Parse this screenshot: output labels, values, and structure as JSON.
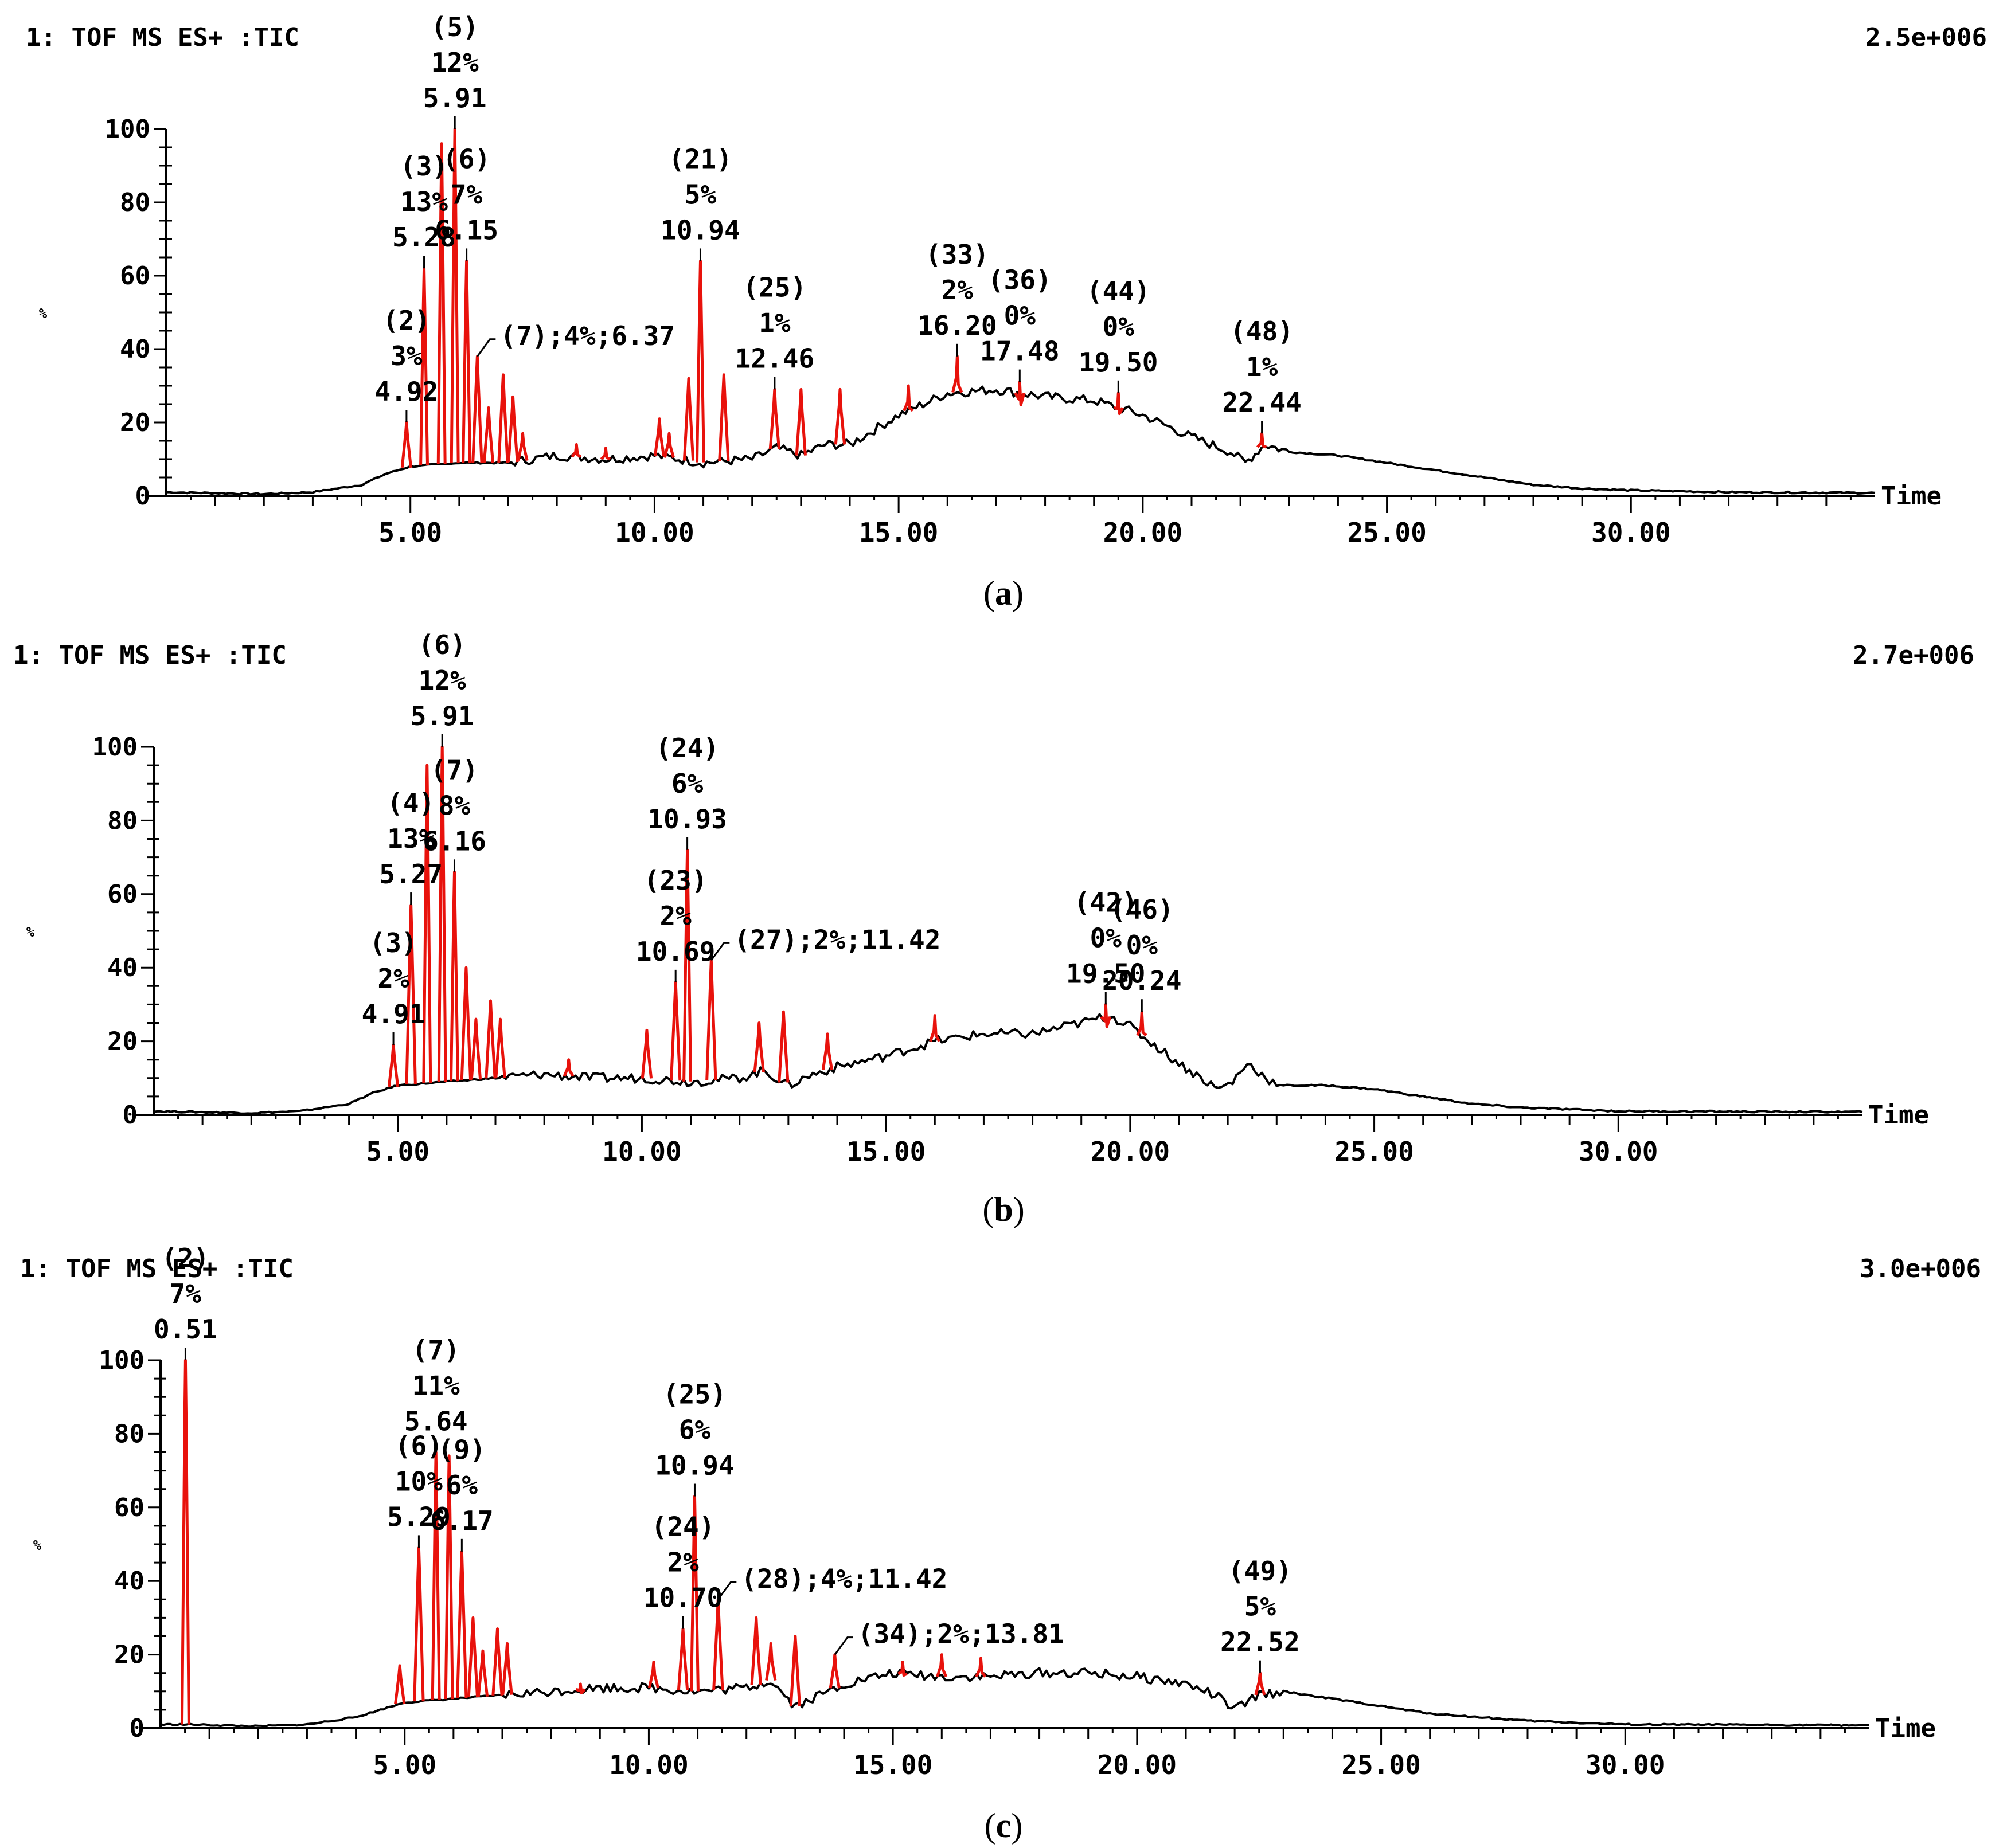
{
  "colors": {
    "peak": "#e8120c",
    "trace": "#000000",
    "background": "#ffffff"
  },
  "chart_data": [
    {
      "type": "line",
      "panel_label": "a",
      "header_left": "1: TOF MS ES+ :TIC",
      "header_right": "2.5e+006",
      "ylabel": "%",
      "xlabel": "Time",
      "xlim": [
        0,
        35
      ],
      "ylim": [
        0,
        100
      ],
      "x_ticks": [
        5,
        10,
        15,
        20,
        25,
        30
      ],
      "x_tick_labels": [
        "5.00",
        "10.00",
        "15.00",
        "20.00",
        "25.00",
        "30.00"
      ],
      "y_ticks": [
        0,
        20,
        40,
        60,
        80,
        100
      ],
      "y_tick_labels": [
        "0",
        "20",
        "40",
        "60",
        "80",
        "100"
      ],
      "baseline": [
        [
          0,
          1
        ],
        [
          2,
          0.5
        ],
        [
          3,
          1
        ],
        [
          4,
          3
        ],
        [
          4.5,
          6
        ],
        [
          5,
          8
        ],
        [
          6,
          9
        ],
        [
          7,
          9
        ],
        [
          8,
          11
        ],
        [
          9,
          10
        ],
        [
          10,
          11
        ],
        [
          11,
          9
        ],
        [
          12,
          10
        ],
        [
          12.5,
          13
        ],
        [
          13,
          11
        ],
        [
          13.5,
          14
        ],
        [
          14,
          14
        ],
        [
          15,
          22
        ],
        [
          16,
          28
        ],
        [
          17,
          29
        ],
        [
          18,
          27
        ],
        [
          19,
          26
        ],
        [
          20,
          22
        ],
        [
          21,
          16
        ],
        [
          21.8,
          12
        ],
        [
          22.1,
          9
        ],
        [
          22.5,
          14
        ],
        [
          23,
          12
        ],
        [
          24,
          11
        ],
        [
          25,
          9
        ],
        [
          26,
          7
        ],
        [
          27,
          5
        ],
        [
          28,
          3
        ],
        [
          29,
          2
        ],
        [
          30,
          1.5
        ],
        [
          32,
          1
        ],
        [
          35,
          0.8
        ]
      ],
      "peaks": [
        [
          4.92,
          20
        ],
        [
          5.28,
          62
        ],
        [
          5.64,
          96
        ],
        [
          5.91,
          100
        ],
        [
          6.15,
          64
        ],
        [
          6.37,
          38
        ],
        [
          6.6,
          24
        ],
        [
          6.9,
          33
        ],
        [
          7.1,
          27
        ],
        [
          7.3,
          17
        ],
        [
          8.4,
          14
        ],
        [
          9.0,
          13
        ],
        [
          10.1,
          21
        ],
        [
          10.3,
          17
        ],
        [
          10.7,
          32
        ],
        [
          10.94,
          64
        ],
        [
          11.42,
          33
        ],
        [
          12.46,
          29
        ],
        [
          13.0,
          29
        ],
        [
          13.8,
          29
        ],
        [
          15.2,
          30
        ],
        [
          16.2,
          38
        ],
        [
          17.48,
          31
        ],
        [
          19.5,
          28
        ],
        [
          22.44,
          17
        ]
      ],
      "annotations": [
        {
          "id": "(2)",
          "pct": "3%",
          "rt": "4.92",
          "x": 4.92
        },
        {
          "id": "(3)",
          "pct": "13%",
          "rt": "5.28",
          "x": 5.28
        },
        {
          "id": "(5)",
          "pct": "12%",
          "rt": "5.91",
          "x": 5.91
        },
        {
          "id": "(6)",
          "pct": "7%",
          "rt": "6.15",
          "x": 6.15
        },
        {
          "id": "(7)",
          "pct": "4%",
          "rt": "6.37",
          "x": 6.37,
          "inline": "(7);4%;6.37"
        },
        {
          "id": "(21)",
          "pct": "5%",
          "rt": "10.94",
          "x": 10.94
        },
        {
          "id": "(25)",
          "pct": "1%",
          "rt": "12.46",
          "x": 12.46
        },
        {
          "id": "(33)",
          "pct": "2%",
          "rt": "16.20",
          "x": 16.2
        },
        {
          "id": "(36)",
          "pct": "0%",
          "rt": "17.48",
          "x": 17.48
        },
        {
          "id": "(44)",
          "pct": "0%",
          "rt": "19.50",
          "x": 19.5
        },
        {
          "id": "(48)",
          "pct": "1%",
          "rt": "22.44",
          "x": 22.44
        }
      ]
    },
    {
      "type": "line",
      "panel_label": "b",
      "header_left": "1: TOF MS ES+ :TIC",
      "header_right": "2.7e+006",
      "ylabel": "%",
      "xlabel": "Time",
      "xlim": [
        0,
        35
      ],
      "ylim": [
        0,
        100
      ],
      "x_ticks": [
        5,
        10,
        15,
        20,
        25,
        30
      ],
      "x_tick_labels": [
        "5.00",
        "10.00",
        "15.00",
        "20.00",
        "25.00",
        "30.00"
      ],
      "y_ticks": [
        0,
        20,
        40,
        60,
        80,
        100
      ],
      "y_tick_labels": [
        "0",
        "20",
        "40",
        "60",
        "80",
        "100"
      ],
      "baseline": [
        [
          0,
          1
        ],
        [
          2,
          0.5
        ],
        [
          3,
          1
        ],
        [
          4,
          3
        ],
        [
          4.5,
          6
        ],
        [
          5,
          8
        ],
        [
          6,
          9
        ],
        [
          7,
          10
        ],
        [
          8,
          11
        ],
        [
          9,
          10
        ],
        [
          10,
          10
        ],
        [
          11,
          9
        ],
        [
          12,
          10
        ],
        [
          12.5,
          12
        ],
        [
          13,
          8
        ],
        [
          13.5,
          11
        ],
        [
          14,
          13
        ],
        [
          15,
          16
        ],
        [
          16,
          20
        ],
        [
          17,
          22
        ],
        [
          18,
          22
        ],
        [
          19,
          25
        ],
        [
          19.6,
          27
        ],
        [
          20,
          24
        ],
        [
          21,
          14
        ],
        [
          21.8,
          7
        ],
        [
          22.1,
          9
        ],
        [
          22.4,
          14
        ],
        [
          23,
          8
        ],
        [
          24,
          8
        ],
        [
          25,
          7
        ],
        [
          26,
          5
        ],
        [
          27,
          3
        ],
        [
          28,
          2
        ],
        [
          30,
          1
        ],
        [
          35,
          0.8
        ]
      ],
      "peaks": [
        [
          4.91,
          19
        ],
        [
          5.27,
          57
        ],
        [
          5.6,
          95
        ],
        [
          5.91,
          100
        ],
        [
          6.16,
          66
        ],
        [
          6.4,
          40
        ],
        [
          6.6,
          26
        ],
        [
          6.9,
          31
        ],
        [
          7.1,
          26
        ],
        [
          8.5,
          15
        ],
        [
          10.1,
          23
        ],
        [
          10.69,
          36
        ],
        [
          10.93,
          72
        ],
        [
          11.42,
          42
        ],
        [
          12.4,
          25
        ],
        [
          12.9,
          28
        ],
        [
          13.8,
          22
        ],
        [
          16.0,
          27
        ],
        [
          19.5,
          30
        ],
        [
          20.24,
          28
        ]
      ],
      "annotations": [
        {
          "id": "(3)",
          "pct": "2%",
          "rt": "4.91",
          "x": 4.91
        },
        {
          "id": "(4)",
          "pct": "13%",
          "rt": "5.27",
          "x": 5.27
        },
        {
          "id": "(6)",
          "pct": "12%",
          "rt": "5.91",
          "x": 5.91
        },
        {
          "id": "(7)",
          "pct": "8%",
          "rt": "6.16",
          "x": 6.16
        },
        {
          "id": "(23)",
          "pct": "2%",
          "rt": "10.69",
          "x": 10.69
        },
        {
          "id": "(24)",
          "pct": "6%",
          "rt": "10.93",
          "x": 10.93
        },
        {
          "id": "(27)",
          "pct": "2%",
          "rt": "11.42",
          "x": 11.42,
          "inline": "(27);2%;11.42"
        },
        {
          "id": "(42)",
          "pct": "0%",
          "rt": "19.50",
          "x": 19.5
        },
        {
          "id": "(46)",
          "pct": "0%",
          "rt": "20.24",
          "x": 20.24
        }
      ]
    },
    {
      "type": "line",
      "panel_label": "c",
      "header_left": "1: TOF MS ES+ :TIC",
      "header_right": "3.0e+006",
      "ylabel": "%",
      "xlabel": "Time",
      "xlim": [
        0,
        35
      ],
      "ylim": [
        0,
        100
      ],
      "x_ticks": [
        5,
        10,
        15,
        20,
        25,
        30
      ],
      "x_tick_labels": [
        "5.00",
        "10.00",
        "15.00",
        "20.00",
        "25.00",
        "30.00"
      ],
      "y_ticks": [
        0,
        20,
        40,
        60,
        80,
        100
      ],
      "y_tick_labels": [
        "0",
        "20",
        "40",
        "60",
        "80",
        "100"
      ],
      "baseline": [
        [
          0,
          1
        ],
        [
          0.4,
          1
        ],
        [
          0.6,
          1
        ],
        [
          2,
          0.5
        ],
        [
          3,
          1
        ],
        [
          4,
          3
        ],
        [
          4.5,
          5
        ],
        [
          5,
          7
        ],
        [
          6,
          8
        ],
        [
          7,
          9
        ],
        [
          8,
          10
        ],
        [
          9,
          11
        ],
        [
          10,
          11
        ],
        [
          11,
          10
        ],
        [
          12,
          11
        ],
        [
          12.5,
          13
        ],
        [
          13,
          6
        ],
        [
          13.5,
          9
        ],
        [
          14,
          12
        ],
        [
          15,
          15
        ],
        [
          16,
          14
        ],
        [
          17,
          14
        ],
        [
          18,
          15
        ],
        [
          19,
          15
        ],
        [
          20,
          14
        ],
        [
          21,
          12
        ],
        [
          21.6,
          9
        ],
        [
          22,
          5
        ],
        [
          22.5,
          9
        ],
        [
          23,
          10
        ],
        [
          24,
          8
        ],
        [
          25,
          6
        ],
        [
          26,
          4
        ],
        [
          27,
          3
        ],
        [
          28,
          2
        ],
        [
          30,
          1
        ],
        [
          35,
          0.8
        ]
      ],
      "peaks": [
        [
          0.51,
          100
        ],
        [
          4.9,
          17
        ],
        [
          5.29,
          49
        ],
        [
          5.64,
          75
        ],
        [
          5.91,
          74
        ],
        [
          6.17,
          48
        ],
        [
          6.4,
          30
        ],
        [
          6.6,
          21
        ],
        [
          6.9,
          27
        ],
        [
          7.1,
          23
        ],
        [
          8.6,
          12
        ],
        [
          10.1,
          18
        ],
        [
          10.7,
          27
        ],
        [
          10.94,
          63
        ],
        [
          11.42,
          35
        ],
        [
          12.2,
          30
        ],
        [
          12.5,
          23
        ],
        [
          13.0,
          25
        ],
        [
          13.81,
          20
        ],
        [
          15.2,
          18
        ],
        [
          16.0,
          20
        ],
        [
          16.8,
          19
        ],
        [
          22.52,
          15
        ]
      ],
      "annotations": [
        {
          "id": "(2)",
          "pct": "7%",
          "rt": "0.51",
          "x": 0.51
        },
        {
          "id": "(6)",
          "pct": "10%",
          "rt": "5.29",
          "x": 5.29
        },
        {
          "id": "(7)",
          "pct": "11%",
          "rt": "5.64",
          "x": 5.64
        },
        {
          "id": "(9)",
          "pct": "6%",
          "rt": "6.17",
          "x": 6.17
        },
        {
          "id": "(24)",
          "pct": "2%",
          "rt": "10.70",
          "x": 10.7
        },
        {
          "id": "(25)",
          "pct": "6%",
          "rt": "10.94",
          "x": 10.94
        },
        {
          "id": "(28)",
          "pct": "4%",
          "rt": "11.42",
          "x": 11.42,
          "inline": "(28);4%;11.42"
        },
        {
          "id": "(34)",
          "pct": "2%",
          "rt": "13.81",
          "x": 13.81,
          "inline": "(34);2%;13.81"
        },
        {
          "id": "(49)",
          "pct": "5%",
          "rt": "22.52",
          "x": 22.52
        }
      ]
    }
  ]
}
